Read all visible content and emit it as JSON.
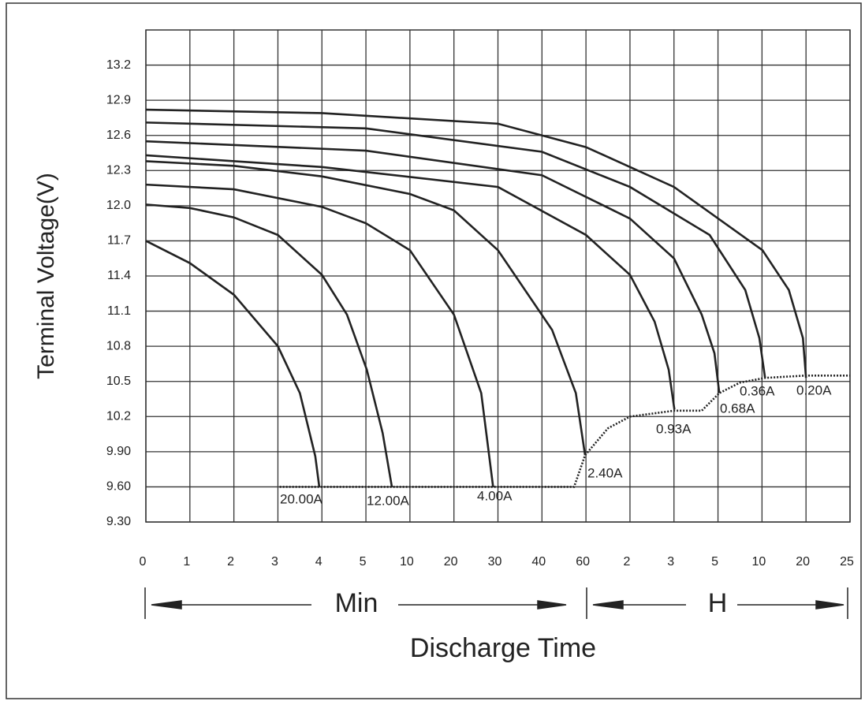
{
  "chart_data": {
    "type": "line",
    "y_label": "Terminal Voltage(V)",
    "x_label": "Discharge Time",
    "x_segment_labels": [
      "Min",
      "H"
    ],
    "ylim": [
      9.3,
      13.5
    ],
    "yticks": [
      {
        "value": 9.3,
        "label": "9.30"
      },
      {
        "value": 9.6,
        "label": "9.60"
      },
      {
        "value": 9.9,
        "label": "9.90"
      },
      10.2,
      10.5,
      10.8,
      11.1,
      11.4,
      11.7,
      {
        "value": 12,
        "label": "12.0"
      },
      12.3,
      12.6,
      12.9,
      13.2
    ],
    "xlim": [
      0,
      16
    ],
    "xticks": [
      0,
      1,
      2,
      3,
      4,
      5,
      {
        "value": 6,
        "label": "10"
      },
      {
        "value": 7,
        "label": "20"
      },
      {
        "value": 8,
        "label": "30"
      },
      {
        "value": 9,
        "label": "40"
      },
      {
        "value": 10,
        "label": "60"
      },
      {
        "value": 11,
        "label": "2"
      },
      {
        "value": 12,
        "label": "3"
      },
      {
        "value": 13,
        "label": "5"
      },
      {
        "value": 14,
        "label": "10"
      },
      {
        "value": 15,
        "label": "20"
      },
      {
        "value": 16,
        "label": "25"
      }
    ],
    "grid": true,
    "series": [
      {
        "name": "20.00A",
        "color": "#222222",
        "x": [
          0,
          1,
          2,
          3,
          3.5,
          3.85,
          3.94
        ],
        "values": [
          11.7,
          11.51,
          11.24,
          10.8,
          10.4,
          9.86,
          9.6
        ]
      },
      {
        "name": "12.00A",
        "color": "#222222",
        "x": [
          0,
          1,
          2,
          3,
          4,
          4.57,
          5.02,
          5.38,
          5.59
        ],
        "values": [
          12.01,
          11.98,
          11.9,
          11.75,
          11.41,
          11.07,
          10.6,
          10.06,
          9.6
        ]
      },
      {
        "name": "4.00A",
        "color": "#222222",
        "x": [
          0,
          2,
          4,
          5,
          6,
          7,
          7.62,
          7.89
        ],
        "values": [
          12.18,
          12.14,
          11.99,
          11.85,
          11.62,
          11.07,
          10.4,
          9.6
        ]
      },
      {
        "name": "2.40A",
        "color": "#222222",
        "x": [
          0,
          2,
          4,
          6,
          7,
          8,
          9.23,
          9.77,
          9.98
        ],
        "values": [
          12.38,
          12.34,
          12.25,
          12.1,
          11.96,
          11.62,
          10.94,
          10.4,
          9.87
        ]
      },
      {
        "name": "0.93A",
        "color": "#222222",
        "x": [
          0,
          4,
          8,
          10,
          11,
          11.56,
          11.88,
          12.01
        ],
        "values": [
          12.43,
          12.33,
          12.16,
          11.75,
          11.41,
          11.01,
          10.6,
          10.26
        ]
      },
      {
        "name": "0.68A",
        "color": "#222222",
        "x": [
          0,
          5,
          9,
          11,
          12,
          12.63,
          12.92,
          13.03
        ],
        "values": [
          12.55,
          12.47,
          12.26,
          11.89,
          11.55,
          11.07,
          10.74,
          10.4
        ]
      },
      {
        "name": "0.36A",
        "color": "#222222",
        "x": [
          0,
          5,
          9,
          11,
          12.81,
          13.62,
          13.94,
          14.07
        ],
        "values": [
          12.71,
          12.66,
          12.46,
          12.16,
          11.75,
          11.28,
          10.87,
          10.53
        ]
      },
      {
        "name": "0.20A",
        "color": "#222222",
        "x": [
          0,
          4,
          8,
          10,
          12,
          14.01,
          14.61,
          14.93,
          15
        ],
        "values": [
          12.82,
          12.79,
          12.7,
          12.5,
          12.16,
          11.62,
          11.28,
          10.87,
          10.53
        ]
      },
      {
        "color": "#444444",
        "style": "dotted",
        "x": [
          3.04,
          9.73,
          9.98,
          10.5,
          11,
          12,
          12.63,
          13.03,
          13.5,
          14.07,
          15,
          16
        ],
        "values": [
          9.6,
          9.6,
          9.87,
          10.1,
          10.2,
          10.25,
          10.25,
          10.4,
          10.49,
          10.53,
          10.55,
          10.55
        ]
      }
    ]
  }
}
